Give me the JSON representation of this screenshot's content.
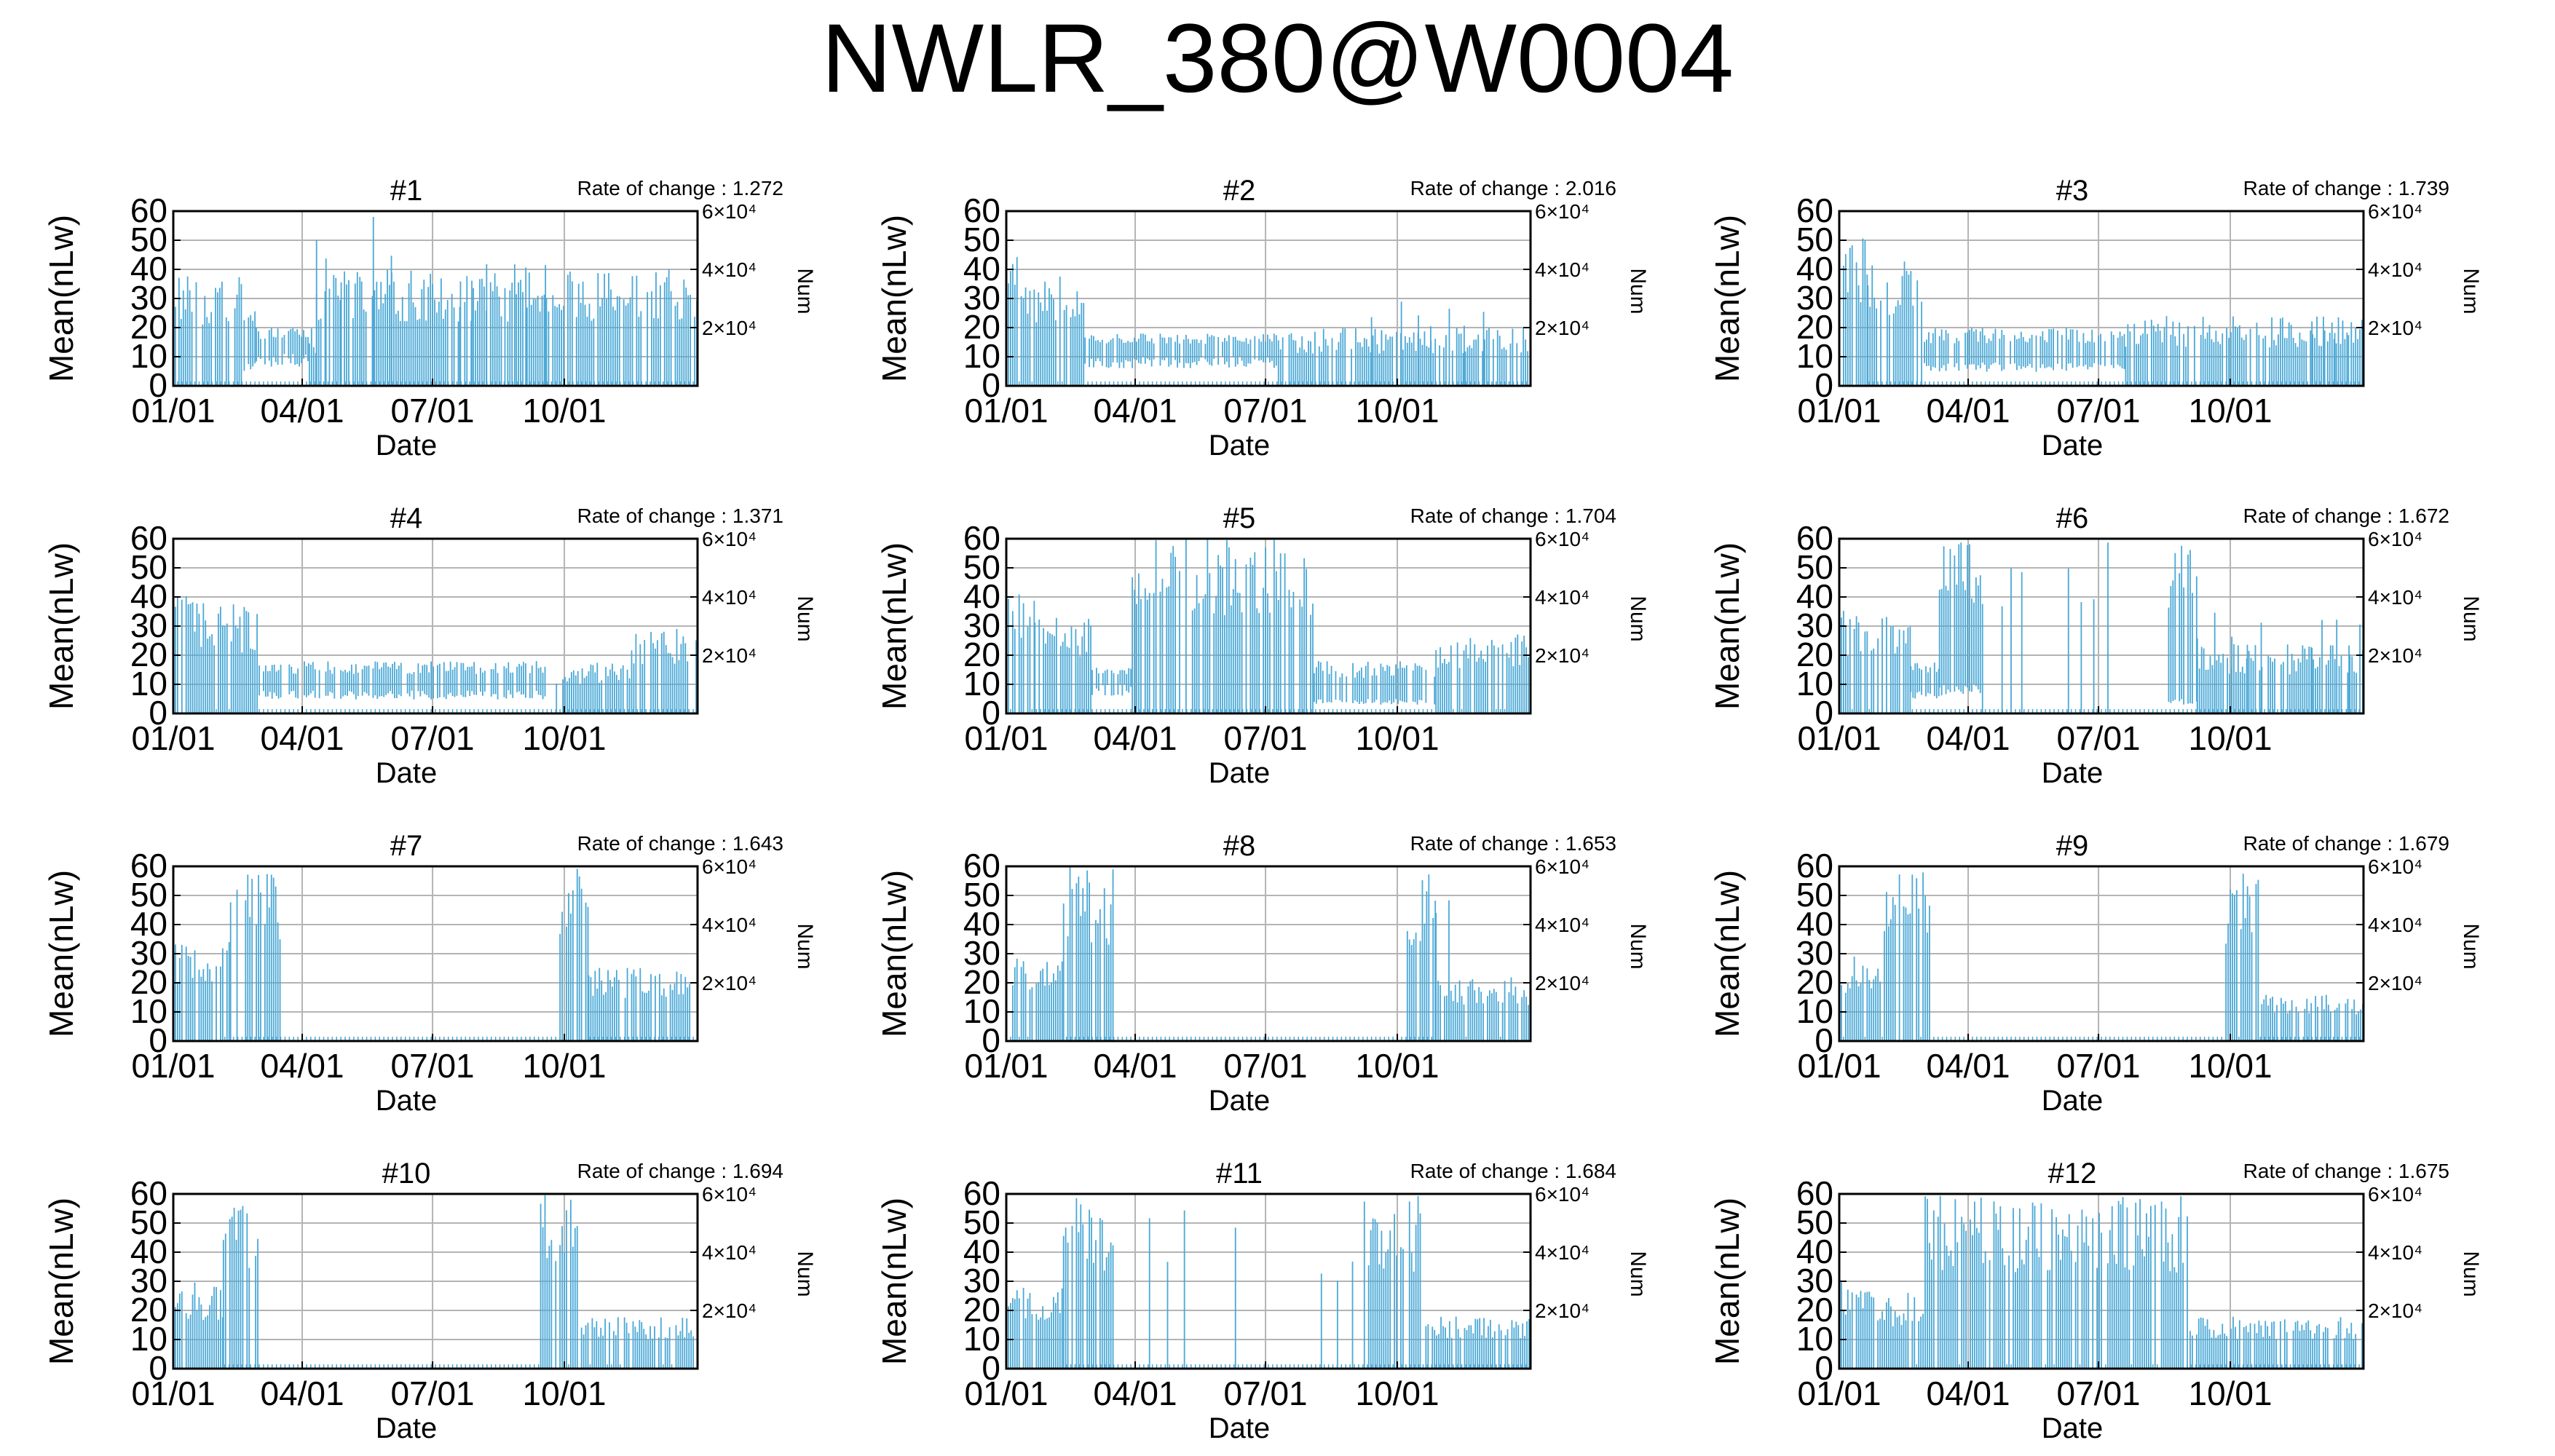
{
  "title": "NWLR_380@W0004",
  "colors": {
    "series": "#4aa8d6",
    "grid": "#b4b4b4",
    "axis": "#000000"
  },
  "chart_data": [
    {
      "type": "bar",
      "title": "#1",
      "rate_text": "Rate of change : 1.272",
      "ylabel": "Mean(nLw)",
      "xlabel": "Date",
      "y2label": "Num",
      "ylim": [
        0,
        60
      ],
      "y2_ticks": [
        "2×10⁴",
        "4×10⁴",
        "6×10⁴"
      ],
      "x_ticks": [
        "01/01",
        "04/01",
        "07/01",
        "10/01"
      ],
      "grid": true,
      "segments": [
        {
          "x": [
            0,
            4
          ],
          "low": 0,
          "high": 44
        },
        {
          "x": [
            4,
            48
          ],
          "low": 0,
          "high": 38
        },
        {
          "x": [
            48,
            58
          ],
          "low": 8,
          "high": 26
        },
        {
          "x": [
            58,
            95
          ],
          "low": 11,
          "high": 20
        },
        {
          "x": [
            95,
            100
          ],
          "low": 0,
          "high": 20
        },
        {
          "x": [
            100,
            366
          ],
          "low": 0,
          "high": 40
        }
      ],
      "spikes": [
        {
          "x": [
            100,
            160
          ],
          "high": 58
        },
        {
          "x": [
            200,
            260
          ],
          "high": 44
        }
      ]
    },
    {
      "type": "bar",
      "title": "#2",
      "rate_text": "Rate of change : 2.016",
      "ylabel": "Mean(nLw)",
      "xlabel": "Date",
      "y2label": "Num",
      "ylim": [
        0,
        60
      ],
      "y2_ticks": [
        "2×10⁴",
        "4×10⁴",
        "6×10⁴"
      ],
      "x_ticks": [
        "01/01",
        "04/01",
        "07/01",
        "10/01"
      ],
      "grid": true,
      "segments": [
        {
          "x": [
            0,
            12
          ],
          "low": 0,
          "high": 52
        },
        {
          "x": [
            12,
            55
          ],
          "low": 0,
          "high": 38
        },
        {
          "x": [
            55,
            190
          ],
          "low": 10,
          "high": 18
        },
        {
          "x": [
            190,
            366
          ],
          "low": 0,
          "high": 20
        }
      ],
      "spikes": [
        {
          "x": [
            255,
            340
          ],
          "high": 30
        }
      ]
    },
    {
      "type": "bar",
      "title": "#3",
      "rate_text": "Rate of change : 1.739",
      "ylabel": "Mean(nLw)",
      "xlabel": "Date",
      "y2label": "Num",
      "ylim": [
        0,
        60
      ],
      "y2_ticks": [
        "2×10⁴",
        "4×10⁴",
        "6×10⁴"
      ],
      "x_ticks": [
        "01/01",
        "04/01",
        "07/01",
        "10/01"
      ],
      "grid": true,
      "segments": [
        {
          "x": [
            0,
            20
          ],
          "low": 0,
          "high": 52
        },
        {
          "x": [
            20,
            58
          ],
          "low": 0,
          "high": 44
        },
        {
          "x": [
            58,
            200
          ],
          "low": 8,
          "high": 20
        },
        {
          "x": [
            200,
            366
          ],
          "low": 0,
          "high": 24
        }
      ],
      "spikes": [
        {
          "x": [
            330,
            360
          ],
          "high": 28
        }
      ]
    },
    {
      "type": "bar",
      "title": "#4",
      "rate_text": "Rate of change : 1.371",
      "ylabel": "Mean(nLw)",
      "xlabel": "Date",
      "y2label": "Num",
      "ylim": [
        0,
        60
      ],
      "y2_ticks": [
        "2×10⁴",
        "4×10⁴",
        "6×10⁴"
      ],
      "x_ticks": [
        "01/01",
        "04/01",
        "07/01",
        "10/01"
      ],
      "grid": true,
      "segments": [
        {
          "x": [
            0,
            15
          ],
          "low": 0,
          "high": 46
        },
        {
          "x": [
            15,
            60
          ],
          "low": 0,
          "high": 38
        },
        {
          "x": [
            60,
            260
          ],
          "low": 8,
          "high": 18
        },
        {
          "x": [
            260,
            320
          ],
          "low": 0,
          "high": 18
        },
        {
          "x": [
            320,
            366
          ],
          "low": 0,
          "high": 30
        }
      ],
      "spikes": []
    },
    {
      "type": "bar",
      "title": "#5",
      "rate_text": "Rate of change : 1.704",
      "ylabel": "Mean(nLw)",
      "xlabel": "Date",
      "y2label": "Num",
      "ylim": [
        0,
        60
      ],
      "y2_ticks": [
        "2×10⁴",
        "4×10⁴",
        "6×10⁴"
      ],
      "x_ticks": [
        "01/01",
        "04/01",
        "07/01",
        "10/01"
      ],
      "grid": true,
      "segments": [
        {
          "x": [
            0,
            20
          ],
          "low": 0,
          "high": 46
        },
        {
          "x": [
            20,
            60
          ],
          "low": 0,
          "high": 34
        },
        {
          "x": [
            60,
            88
          ],
          "low": 10,
          "high": 16
        },
        {
          "x": [
            88,
            215
          ],
          "low": 0,
          "high": 60
        },
        {
          "x": [
            215,
            300
          ],
          "low": 5,
          "high": 18
        },
        {
          "x": [
            300,
            366
          ],
          "low": 0,
          "high": 28
        }
      ],
      "spikes": []
    },
    {
      "type": "bar",
      "title": "#6",
      "rate_text": "Rate of change : 1.672",
      "ylabel": "Mean(nLw)",
      "xlabel": "Date",
      "y2label": "Num",
      "ylim": [
        0,
        60
      ],
      "y2_ticks": [
        "2×10⁴",
        "4×10⁴",
        "6×10⁴"
      ],
      "x_ticks": [
        "01/01",
        "04/01",
        "07/01",
        "10/01"
      ],
      "grid": true,
      "segments": [
        {
          "x": [
            0,
            50
          ],
          "low": 0,
          "high": 36
        },
        {
          "x": [
            50,
            70
          ],
          "low": 8,
          "high": 18
        },
        {
          "x": [
            70,
            100
          ],
          "low": 10,
          "high": 60
        },
        {
          "x": [
            230,
            250
          ],
          "low": 5,
          "high": 60
        },
        {
          "x": [
            250,
            366
          ],
          "low": 0,
          "high": 24
        }
      ],
      "spikes": [
        {
          "x": [
            100,
            130
          ],
          "high": 60
        },
        {
          "x": [
            160,
            200
          ],
          "high": 60
        },
        {
          "x": [
            250,
            300
          ],
          "high": 38
        },
        {
          "x": [
            330,
            366
          ],
          "high": 34
        }
      ]
    },
    {
      "type": "bar",
      "title": "#7",
      "rate_text": "Rate of change : 1.643",
      "ylabel": "Mean(nLw)",
      "xlabel": "Date",
      "y2label": "Num",
      "ylim": [
        0,
        60
      ],
      "y2_ticks": [
        "2×10⁴",
        "4×10⁴",
        "6×10⁴"
      ],
      "x_ticks": [
        "01/01",
        "04/01",
        "07/01",
        "10/01"
      ],
      "grid": true,
      "segments": [
        {
          "x": [
            0,
            40
          ],
          "low": 0,
          "high": 34
        },
        {
          "x": [
            40,
            75
          ],
          "low": 0,
          "high": 60
        },
        {
          "x": [
            270,
            290
          ],
          "low": 0,
          "high": 60
        },
        {
          "x": [
            290,
            366
          ],
          "low": 0,
          "high": 26
        }
      ],
      "spikes": []
    },
    {
      "type": "bar",
      "title": "#8",
      "rate_text": "Rate of change : 1.653",
      "ylabel": "Mean(nLw)",
      "xlabel": "Date",
      "y2label": "Num",
      "ylim": [
        0,
        60
      ],
      "y2_ticks": [
        "2×10⁴",
        "4×10⁴",
        "6×10⁴"
      ],
      "x_ticks": [
        "01/01",
        "04/01",
        "07/01",
        "10/01"
      ],
      "grid": true,
      "segments": [
        {
          "x": [
            0,
            40
          ],
          "low": 0,
          "high": 30
        },
        {
          "x": [
            40,
            75
          ],
          "low": 0,
          "high": 60
        },
        {
          "x": [
            280,
            300
          ],
          "low": 0,
          "high": 60
        },
        {
          "x": [
            300,
            366
          ],
          "low": 0,
          "high": 22
        }
      ],
      "spikes": [
        {
          "x": [
            300,
            320
          ],
          "high": 54
        }
      ]
    },
    {
      "type": "bar",
      "title": "#9",
      "rate_text": "Rate of change : 1.679",
      "ylabel": "Mean(nLw)",
      "xlabel": "Date",
      "y2label": "Num",
      "ylim": [
        0,
        60
      ],
      "y2_ticks": [
        "2×10⁴",
        "4×10⁴",
        "6×10⁴"
      ],
      "x_ticks": [
        "01/01",
        "04/01",
        "07/01",
        "10/01"
      ],
      "grid": true,
      "segments": [
        {
          "x": [
            0,
            30
          ],
          "low": 0,
          "high": 30
        },
        {
          "x": [
            30,
            65
          ],
          "low": 0,
          "high": 60
        },
        {
          "x": [
            270,
            295
          ],
          "low": 0,
          "high": 60
        },
        {
          "x": [
            295,
            366
          ],
          "low": 0,
          "high": 16
        }
      ],
      "spikes": []
    },
    {
      "type": "bar",
      "title": "#10",
      "rate_text": "Rate of change : 1.694",
      "ylabel": "Mean(nLw)",
      "xlabel": "Date",
      "y2label": "Num",
      "ylim": [
        0,
        60
      ],
      "y2_ticks": [
        "2×10⁴",
        "4×10⁴",
        "6×10⁴"
      ],
      "x_ticks": [
        "01/01",
        "04/01",
        "07/01",
        "10/01"
      ],
      "grid": true,
      "segments": [
        {
          "x": [
            0,
            35
          ],
          "low": 0,
          "high": 30
        },
        {
          "x": [
            35,
            60
          ],
          "low": 0,
          "high": 60
        },
        {
          "x": [
            255,
            285
          ],
          "low": 0,
          "high": 60
        },
        {
          "x": [
            285,
            366
          ],
          "low": 0,
          "high": 18
        }
      ],
      "spikes": []
    },
    {
      "type": "bar",
      "title": "#11",
      "rate_text": "Rate of change : 1.684",
      "ylabel": "Mean(nLw)",
      "xlabel": "Date",
      "y2label": "Num",
      "ylim": [
        0,
        60
      ],
      "y2_ticks": [
        "2×10⁴",
        "4×10⁴",
        "6×10⁴"
      ],
      "x_ticks": [
        "01/01",
        "04/01",
        "07/01",
        "10/01"
      ],
      "grid": true,
      "segments": [
        {
          "x": [
            0,
            40
          ],
          "low": 0,
          "high": 28
        },
        {
          "x": [
            40,
            75
          ],
          "low": 0,
          "high": 60
        },
        {
          "x": [
            250,
            290
          ],
          "low": 0,
          "high": 60
        },
        {
          "x": [
            290,
            366
          ],
          "low": 0,
          "high": 18
        }
      ],
      "spikes": [
        {
          "x": [
            100,
            130
          ],
          "high": 60
        },
        {
          "x": [
            160,
            170
          ],
          "high": 60
        },
        {
          "x": [
            220,
            250
          ],
          "high": 40
        }
      ]
    },
    {
      "type": "bar",
      "title": "#12",
      "rate_text": "Rate of change : 1.675",
      "ylabel": "Mean(nLw)",
      "xlabel": "Date",
      "y2label": "Num",
      "ylim": [
        0,
        60
      ],
      "y2_ticks": [
        "2×10⁴",
        "4×10⁴",
        "6×10⁴"
      ],
      "x_ticks": [
        "01/01",
        "04/01",
        "07/01",
        "10/01"
      ],
      "grid": true,
      "segments": [
        {
          "x": [
            0,
            30
          ],
          "low": 0,
          "high": 30
        },
        {
          "x": [
            30,
            60
          ],
          "low": 0,
          "high": 26
        },
        {
          "x": [
            60,
            245
          ],
          "low": 0,
          "high": 60
        },
        {
          "x": [
            245,
            366
          ],
          "low": 0,
          "high": 18
        }
      ],
      "spikes": []
    }
  ]
}
